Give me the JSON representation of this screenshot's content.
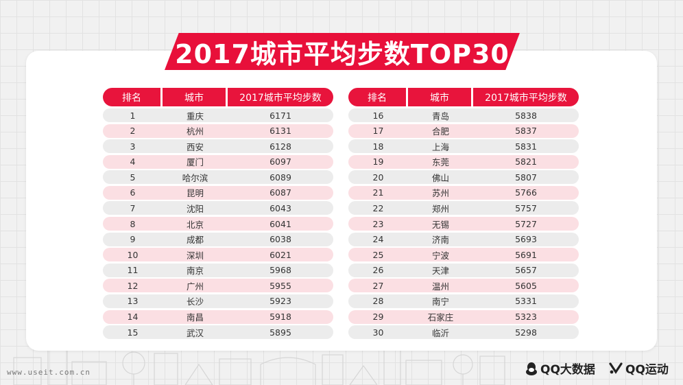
{
  "title": "2017城市平均步数TOP30",
  "headers": {
    "rank": "排名",
    "city": "城市",
    "steps": "2017城市平均步数"
  },
  "left_rows": [
    {
      "rank": "1",
      "city": "重庆",
      "steps": "6171"
    },
    {
      "rank": "2",
      "city": "杭州",
      "steps": "6131"
    },
    {
      "rank": "3",
      "city": "西安",
      "steps": "6128"
    },
    {
      "rank": "4",
      "city": "厦门",
      "steps": "6097"
    },
    {
      "rank": "5",
      "city": "哈尔滨",
      "steps": "6089"
    },
    {
      "rank": "6",
      "city": "昆明",
      "steps": "6087"
    },
    {
      "rank": "7",
      "city": "沈阳",
      "steps": "6043"
    },
    {
      "rank": "8",
      "city": "北京",
      "steps": "6041"
    },
    {
      "rank": "9",
      "city": "成都",
      "steps": "6038"
    },
    {
      "rank": "10",
      "city": "深圳",
      "steps": "6021"
    },
    {
      "rank": "11",
      "city": "南京",
      "steps": "5968"
    },
    {
      "rank": "12",
      "city": "广州",
      "steps": "5955"
    },
    {
      "rank": "13",
      "city": "长沙",
      "steps": "5923"
    },
    {
      "rank": "14",
      "city": "南昌",
      "steps": "5918"
    },
    {
      "rank": "15",
      "city": "武汉",
      "steps": "5895"
    }
  ],
  "right_rows": [
    {
      "rank": "16",
      "city": "青岛",
      "steps": "5838"
    },
    {
      "rank": "17",
      "city": "合肥",
      "steps": "5837"
    },
    {
      "rank": "18",
      "city": "上海",
      "steps": "5831"
    },
    {
      "rank": "19",
      "city": "东莞",
      "steps": "5821"
    },
    {
      "rank": "20",
      "city": "佛山",
      "steps": "5807"
    },
    {
      "rank": "21",
      "city": "苏州",
      "steps": "5766"
    },
    {
      "rank": "22",
      "city": "郑州",
      "steps": "5757"
    },
    {
      "rank": "23",
      "city": "无锡",
      "steps": "5727"
    },
    {
      "rank": "24",
      "city": "济南",
      "steps": "5693"
    },
    {
      "rank": "25",
      "city": "宁波",
      "steps": "5691"
    },
    {
      "rank": "26",
      "city": "天津",
      "steps": "5657"
    },
    {
      "rank": "27",
      "city": "温州",
      "steps": "5605"
    },
    {
      "rank": "28",
      "city": "南宁",
      "steps": "5331"
    },
    {
      "rank": "29",
      "city": "石家庄",
      "steps": "5323"
    },
    {
      "rank": "30",
      "city": "临沂",
      "steps": "5298"
    }
  ],
  "footer": {
    "watermark": "www.useit.com.cn",
    "logo_qq_text": "QQ大数据",
    "logo_sport_text": "QQ运动"
  },
  "colors": {
    "accent": "#e8143c",
    "row_odd": "#ececec",
    "row_even": "#fbdfe3",
    "card": "#ffffff",
    "background": "#f1f1f1"
  },
  "icons": {
    "qq": "penguin-icon",
    "sport": "qq-sport-icon"
  }
}
